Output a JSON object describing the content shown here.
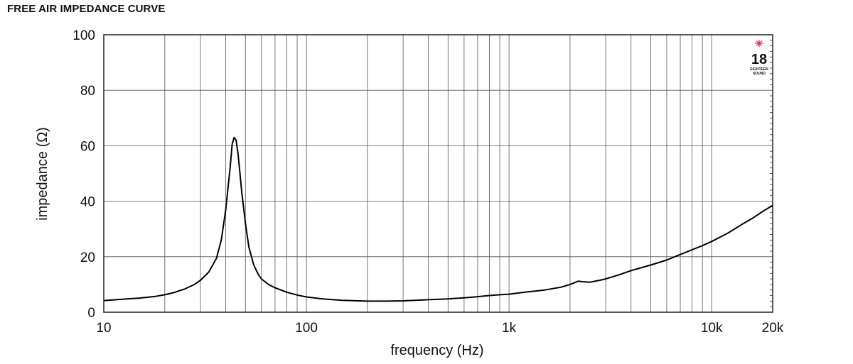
{
  "title": "FREE AIR IMPEDANCE CURVE",
  "logo": {
    "number": "18",
    "sub_line_1": "EIGHTEEN",
    "sub_line_2": "SOUND"
  },
  "chart_data": {
    "type": "line",
    "title": "FREE AIR IMPEDANCE CURVE",
    "xlabel": "frequency (Hz)",
    "ylabel": "impedance (Ω)",
    "x_scale": "log",
    "xlim": [
      10,
      20000
    ],
    "ylim": [
      0,
      100
    ],
    "grid": true,
    "y_ticks": [
      0,
      20,
      40,
      60,
      80,
      100
    ],
    "y_tick_labels": [
      "0",
      "20",
      "40",
      "60",
      "80",
      "100"
    ],
    "x_ticks": [
      10,
      100,
      1000,
      10000,
      20000
    ],
    "x_tick_labels": [
      "10",
      "100",
      "1k",
      "10k",
      "20k"
    ],
    "series": [
      {
        "color": "#000000",
        "x": [
          10,
          12,
          15,
          18,
          20,
          22,
          25,
          28,
          30,
          33,
          36,
          38,
          40,
          42,
          43,
          44,
          45,
          46,
          47,
          48,
          50,
          52,
          55,
          58,
          60,
          65,
          70,
          80,
          90,
          100,
          120,
          150,
          200,
          250,
          300,
          400,
          500,
          600,
          700,
          800,
          900,
          1000,
          1200,
          1500,
          1800,
          2000,
          2200,
          2300,
          2500,
          2800,
          3000,
          3500,
          4000,
          5000,
          6000,
          7000,
          8000,
          9000,
          10000,
          12000,
          14000,
          16000,
          18000,
          20000
        ],
        "y": [
          4.2,
          4.6,
          5.1,
          5.7,
          6.3,
          7.0,
          8.3,
          10.0,
          11.5,
          14.5,
          19.5,
          26.0,
          37.0,
          52.0,
          60.5,
          63.0,
          62.0,
          57.0,
          50.0,
          43.0,
          32.0,
          23.5,
          17.0,
          13.5,
          12.0,
          10.0,
          8.8,
          7.2,
          6.2,
          5.5,
          4.8,
          4.3,
          4.0,
          4.0,
          4.1,
          4.5,
          4.8,
          5.2,
          5.6,
          6.0,
          6.3,
          6.5,
          7.2,
          8.0,
          9.0,
          10.0,
          11.2,
          11.0,
          10.8,
          11.5,
          12.0,
          13.5,
          15.0,
          17.0,
          18.8,
          20.8,
          22.5,
          24.0,
          25.5,
          28.5,
          31.5,
          34.0,
          36.5,
          38.5
        ]
      }
    ]
  }
}
